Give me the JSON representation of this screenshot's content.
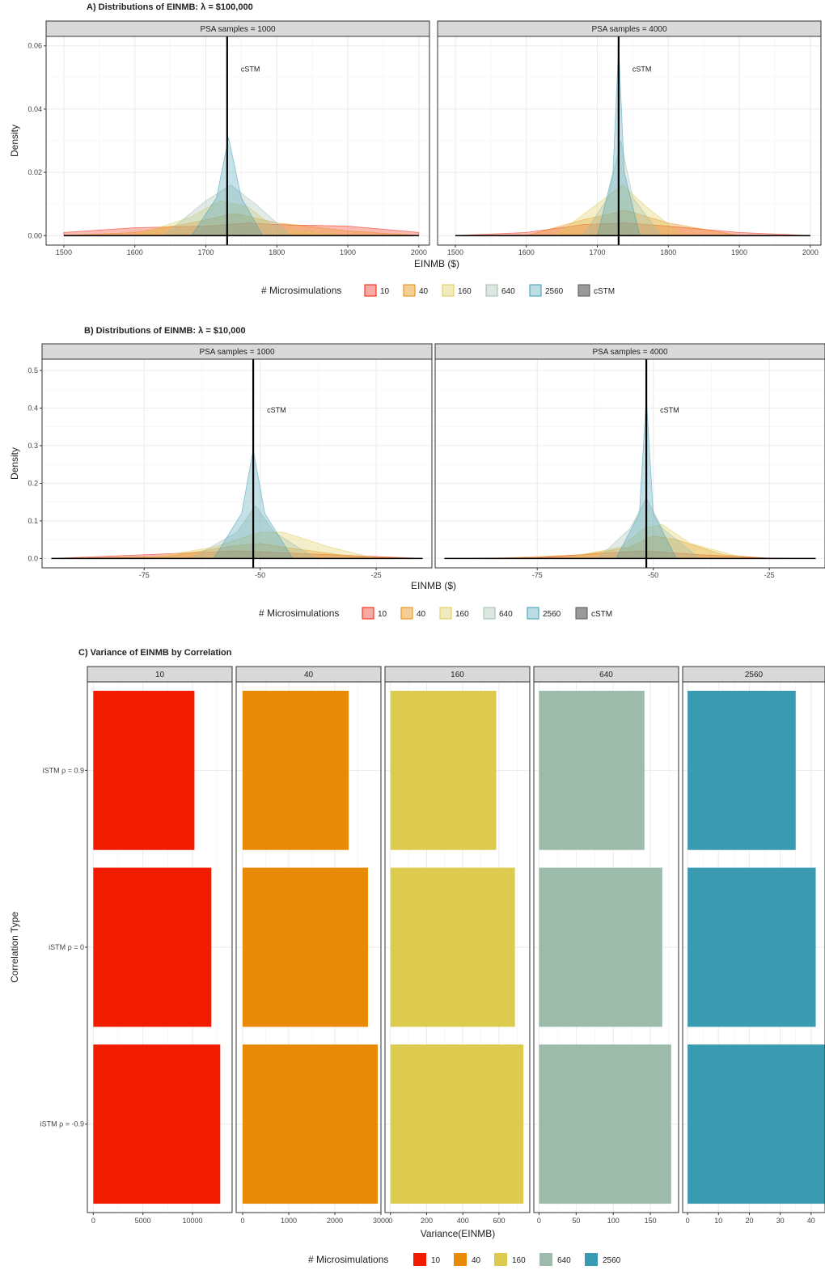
{
  "colors": {
    "10": "#F11B00",
    "40": "#E88A06",
    "160": "#DCCB4E",
    "640": "#9CBBAB",
    "2560": "#3A9AB2",
    "cSTM": "#999999",
    "strip_bg": "#D9D9D9",
    "grid": "#EBEBEB"
  },
  "chart_data": [
    {
      "type": "area",
      "title": "A) Distributions of EINMB: λ = $100,000",
      "xlabel": "EINMB ($)",
      "ylabel": "Density",
      "xlim": [
        1475,
        2015
      ],
      "ylim": [
        -0.003,
        0.063
      ],
      "xticks": [
        1500,
        1600,
        1700,
        1800,
        1900,
        2000
      ],
      "yticks": [
        0.0,
        0.02,
        0.04,
        0.06
      ],
      "ytick_labels": [
        "0.00",
        "0.02",
        "0.04",
        "0.06"
      ],
      "reference_line": {
        "label": "cSTM",
        "x": 1730
      },
      "legend_title": "# Microsimulations",
      "legend": [
        "10",
        "40",
        "160",
        "640",
        "2560",
        "cSTM"
      ],
      "legend_position": "bottom",
      "facets": [
        {
          "strip": "PSA samples = 1000",
          "series": [
            {
              "name": "10",
              "x": [
                1500,
                1600,
                1700,
                1760,
                1800,
                1900,
                2000
              ],
              "y": [
                0.001,
                0.0025,
                0.003,
                0.004,
                0.0035,
                0.003,
                0.001
              ]
            },
            {
              "name": "40",
              "x": [
                1500,
                1600,
                1680,
                1740,
                1800,
                1900,
                2000
              ],
              "y": [
                0.0,
                0.001,
                0.004,
                0.007,
                0.004,
                0.0015,
                0.0
              ]
            },
            {
              "name": "160",
              "x": [
                1600,
                1680,
                1720,
                1760,
                1800,
                1900
              ],
              "y": [
                0.0,
                0.006,
                0.011,
                0.009,
                0.002,
                0.0
              ]
            },
            {
              "name": "640",
              "x": [
                1640,
                1700,
                1735,
                1770,
                1820
              ],
              "y": [
                0.0,
                0.011,
                0.016,
                0.01,
                0.0
              ]
            },
            {
              "name": "2560",
              "x": [
                1680,
                1715,
                1732,
                1750,
                1780
              ],
              "y": [
                0.0,
                0.012,
                0.031,
                0.012,
                0.0
              ]
            },
            {
              "name": "cSTM",
              "x": [
                1500,
                2000
              ],
              "y": [
                0.0,
                0.0
              ]
            }
          ]
        },
        {
          "strip": "PSA samples = 4000",
          "series": [
            {
              "name": "10",
              "x": [
                1500,
                1600,
                1680,
                1740,
                1800,
                1900,
                2000
              ],
              "y": [
                0.0,
                0.001,
                0.0035,
                0.004,
                0.003,
                0.001,
                0.0
              ]
            },
            {
              "name": "40",
              "x": [
                1600,
                1680,
                1740,
                1800,
                1900
              ],
              "y": [
                0.0,
                0.005,
                0.008,
                0.004,
                0.0
              ]
            },
            {
              "name": "160",
              "x": [
                1640,
                1700,
                1735,
                1770,
                1820
              ],
              "y": [
                0.0,
                0.01,
                0.016,
                0.009,
                0.0
              ]
            },
            {
              "name": "640",
              "x": [
                1680,
                1715,
                1733,
                1750,
                1790
              ],
              "y": [
                0.0,
                0.012,
                0.03,
                0.012,
                0.0
              ]
            },
            {
              "name": "2560",
              "x": [
                1700,
                1722,
                1730,
                1738,
                1760
              ],
              "y": [
                0.0,
                0.02,
                0.06,
                0.02,
                0.0
              ]
            },
            {
              "name": "cSTM",
              "x": [
                1500,
                2000
              ],
              "y": [
                0.0,
                0.0
              ]
            }
          ]
        }
      ]
    },
    {
      "type": "area",
      "title": "B) Distributions of EINMB: λ = $10,000",
      "xlabel": "EINMB ($)",
      "ylabel": "Density",
      "xlim": [
        -97,
        -13
      ],
      "ylim": [
        -0.025,
        0.53
      ],
      "xticks": [
        -75,
        -50,
        -25
      ],
      "yticks": [
        0.0,
        0.1,
        0.2,
        0.3,
        0.4,
        0.5
      ],
      "ytick_labels": [
        "0.0",
        "0.1",
        "0.2",
        "0.3",
        "0.4",
        "0.5"
      ],
      "reference_line": {
        "label": "cSTM",
        "x": -51.5
      },
      "legend_title": "# Microsimulations",
      "legend": [
        "10",
        "40",
        "160",
        "640",
        "2560",
        "cSTM"
      ],
      "legend_position": "bottom",
      "facets": [
        {
          "strip": "PSA samples = 1000",
          "series": [
            {
              "name": "10",
              "x": [
                -95,
                -75,
                -55,
                -45,
                -25,
                -15
              ],
              "y": [
                0.0,
                0.01,
                0.02,
                0.015,
                0.005,
                0.0
              ]
            },
            {
              "name": "40",
              "x": [
                -95,
                -70,
                -55,
                -50,
                -45,
                -30,
                -15
              ],
              "y": [
                0.0,
                0.005,
                0.035,
                0.04,
                0.03,
                0.005,
                0.0
              ]
            },
            {
              "name": "160",
              "x": [
                -75,
                -60,
                -50,
                -45,
                -35,
                -25
              ],
              "y": [
                0.0,
                0.03,
                0.07,
                0.07,
                0.03,
                0.0
              ]
            },
            {
              "name": "640",
              "x": [
                -65,
                -55,
                -51,
                -47,
                -38
              ],
              "y": [
                0.0,
                0.07,
                0.14,
                0.07,
                0.0
              ]
            },
            {
              "name": "2560",
              "x": [
                -60,
                -54,
                -51.5,
                -49,
                -43
              ],
              "y": [
                0.0,
                0.12,
                0.29,
                0.12,
                0.0
              ]
            },
            {
              "name": "cSTM",
              "x": [
                -95,
                -15
              ],
              "y": [
                0.0,
                0.0
              ]
            }
          ]
        },
        {
          "strip": "PSA samples = 4000",
          "series": [
            {
              "name": "10",
              "x": [
                -95,
                -75,
                -60,
                -52,
                -40,
                -25,
                -15
              ],
              "y": [
                0.0,
                0.002,
                0.015,
                0.02,
                0.01,
                0.001,
                0.0
              ]
            },
            {
              "name": "40",
              "x": [
                -85,
                -65,
                -55,
                -50,
                -45,
                -35,
                -25
              ],
              "y": [
                0.0,
                0.01,
                0.03,
                0.06,
                0.05,
                0.01,
                0.0
              ]
            },
            {
              "name": "160",
              "x": [
                -70,
                -57,
                -52,
                -48,
                -42,
                -30
              ],
              "y": [
                0.0,
                0.03,
                0.08,
                0.09,
                0.04,
                0.0
              ]
            },
            {
              "name": "640",
              "x": [
                -62,
                -55,
                -51.5,
                -48,
                -40
              ],
              "y": [
                0.0,
                0.08,
                0.16,
                0.08,
                0.0
              ]
            },
            {
              "name": "2560",
              "x": [
                -58,
                -53,
                -51.5,
                -50,
                -45
              ],
              "y": [
                0.0,
                0.12,
                0.43,
                0.12,
                0.0
              ]
            },
            {
              "name": "cSTM",
              "x": [
                -95,
                -15
              ],
              "y": [
                0.0,
                0.0
              ]
            }
          ]
        }
      ]
    },
    {
      "type": "bar",
      "orientation": "horizontal",
      "title": "C) Variance of EINMB by Correlation",
      "xlabel": "Variance(EINMB)",
      "ylabel": "Correlation Type",
      "categories": [
        "iSTM ρ = 0.9",
        "iSTM ρ = 0",
        "iSTM ρ = -0.9"
      ],
      "legend_title": "# Microsimulations",
      "legend": [
        "10",
        "40",
        "160",
        "640",
        "2560"
      ],
      "legend_position": "bottom",
      "facets": [
        {
          "strip": "10",
          "xlim": [
            -600,
            14000
          ],
          "ticks": [
            0,
            5000,
            10000
          ],
          "values": [
            10200,
            11900,
            12800
          ]
        },
        {
          "strip": "40",
          "xlim": [
            -140,
            3000
          ],
          "ticks": [
            0,
            1000,
            2000,
            3000
          ],
          "values": [
            2300,
            2720,
            2930
          ]
        },
        {
          "strip": "160",
          "xlim": [
            -30,
            770
          ],
          "ticks": [
            0,
            200,
            400,
            600
          ],
          "values": [
            585,
            688,
            735
          ]
        },
        {
          "strip": "640",
          "xlim": [
            -7,
            188
          ],
          "ticks": [
            0,
            50,
            100,
            150
          ],
          "values": [
            142,
            166,
            178
          ]
        },
        {
          "strip": "2560",
          "xlim": [
            -1.6,
            44.5
          ],
          "ticks": [
            0,
            10,
            20,
            30,
            40
          ],
          "values": [
            35,
            41.5,
            45
          ]
        }
      ]
    }
  ]
}
